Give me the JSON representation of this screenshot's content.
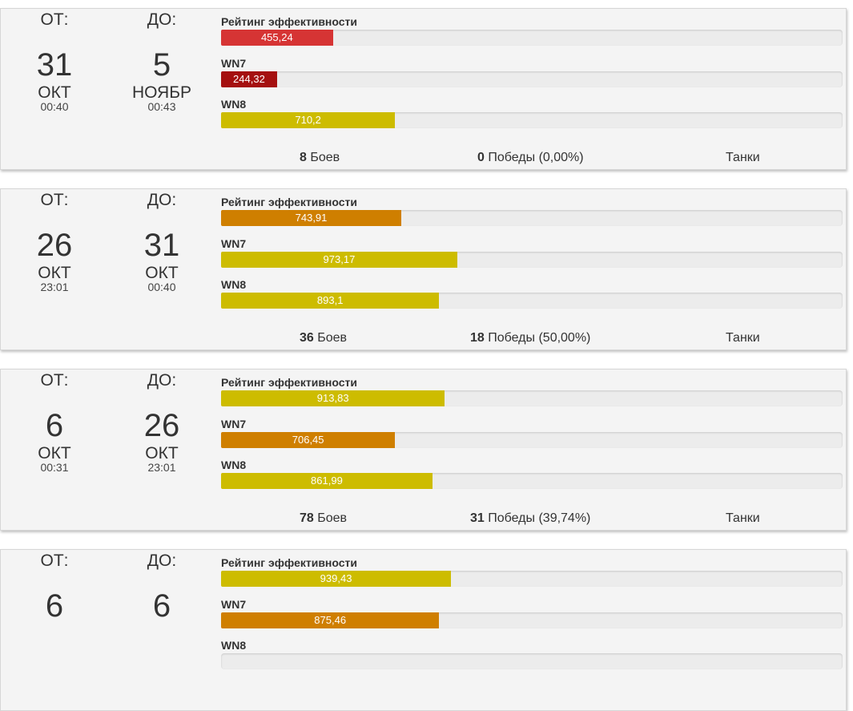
{
  "colors": {
    "red": "#d63434",
    "darkred": "#a51010",
    "orange": "#cf7f00",
    "yellow": "#cdbc00"
  },
  "periods": [
    {
      "from": {
        "label": "ОТ:",
        "day": "31",
        "month": "ОКТ",
        "time": "00:40"
      },
      "to": {
        "label": "ДО:",
        "day": "5",
        "month": "НОЯБР",
        "time": "00:43"
      },
      "metrics": [
        {
          "name": "Рейтинг эффективности",
          "value": "455,24",
          "fraction": 0.18,
          "color": "red"
        },
        {
          "name": "WN7",
          "value": "244,32",
          "fraction": 0.09,
          "color": "darkred"
        },
        {
          "name": "WN8",
          "value": "710,2",
          "fraction": 0.28,
          "color": "yellow"
        }
      ],
      "battles_count": "8",
      "battles_label": "Боев",
      "wins_count": "0",
      "wins_label": "Победы (0,00%)",
      "tanks_label": "Танки"
    },
    {
      "from": {
        "label": "ОТ:",
        "day": "26",
        "month": "ОКТ",
        "time": "23:01"
      },
      "to": {
        "label": "ДО:",
        "day": "31",
        "month": "ОКТ",
        "time": "00:40"
      },
      "metrics": [
        {
          "name": "Рейтинг эффективности",
          "value": "743,91",
          "fraction": 0.29,
          "color": "orange"
        },
        {
          "name": "WN7",
          "value": "973,17",
          "fraction": 0.38,
          "color": "yellow"
        },
        {
          "name": "WN8",
          "value": "893,1",
          "fraction": 0.351,
          "color": "yellow"
        }
      ],
      "battles_count": "36",
      "battles_label": "Боев",
      "wins_count": "18",
      "wins_label": "Победы (50,00%)",
      "tanks_label": "Танки"
    },
    {
      "from": {
        "label": "ОТ:",
        "day": "6",
        "month": "ОКТ",
        "time": "00:31"
      },
      "to": {
        "label": "ДО:",
        "day": "26",
        "month": "ОКТ",
        "time": "23:01"
      },
      "metrics": [
        {
          "name": "Рейтинг эффективности",
          "value": "913,83",
          "fraction": 0.36,
          "color": "yellow"
        },
        {
          "name": "WN7",
          "value": "706,45",
          "fraction": 0.28,
          "color": "orange"
        },
        {
          "name": "WN8",
          "value": "861,99",
          "fraction": 0.34,
          "color": "yellow"
        }
      ],
      "battles_count": "78",
      "battles_label": "Боев",
      "wins_count": "31",
      "wins_label": "Победы (39,74%)",
      "tanks_label": "Танки"
    },
    {
      "from": {
        "label": "ОТ:",
        "day": "6",
        "month": "",
        "time": ""
      },
      "to": {
        "label": "ДО:",
        "day": "6",
        "month": "",
        "time": ""
      },
      "metrics": [
        {
          "name": "Рейтинг эффективности",
          "value": "939,43",
          "fraction": 0.37,
          "color": "yellow"
        },
        {
          "name": "WN7",
          "value": "875,46",
          "fraction": 0.351,
          "color": "orange"
        },
        {
          "name": "WN8",
          "value": "",
          "fraction": 0,
          "color": "yellow"
        }
      ],
      "battles_count": "",
      "battles_label": "",
      "wins_count": "",
      "wins_label": "",
      "tanks_label": ""
    }
  ]
}
